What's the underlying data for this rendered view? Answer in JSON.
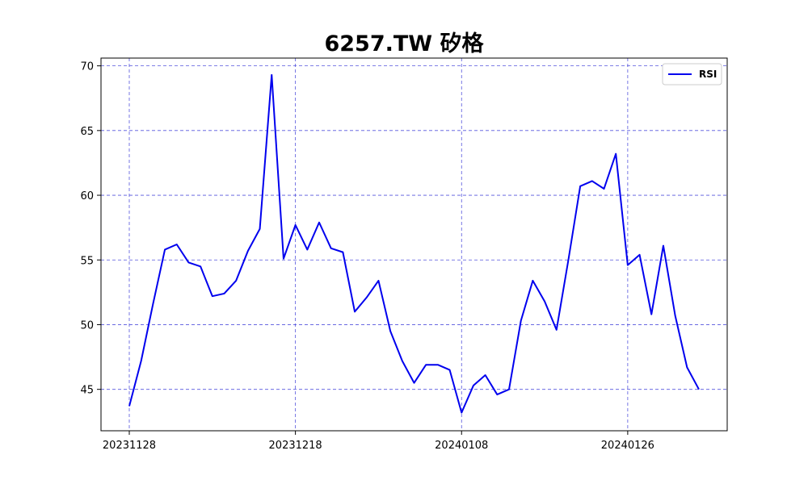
{
  "chart_data": {
    "type": "line",
    "title": "6257.TW 矽格",
    "xlabel": "",
    "ylabel": "",
    "x_tick_labels": [
      "20231128",
      "20231218",
      "20240108",
      "20240126"
    ],
    "x_tick_indices": [
      0,
      14,
      28,
      42
    ],
    "ylim": [
      41.8,
      70.6
    ],
    "yticks": [
      45,
      50,
      55,
      60,
      65,
      70
    ],
    "grid": true,
    "legend_position": "top-right",
    "series": [
      {
        "name": "RSI",
        "color": "#0000ee",
        "values": [
          43.7,
          47.2,
          51.6,
          55.8,
          56.2,
          54.8,
          54.5,
          52.2,
          52.4,
          53.4,
          55.7,
          57.4,
          69.3,
          55.1,
          57.7,
          55.8,
          57.9,
          55.9,
          55.6,
          51.0,
          52.1,
          53.4,
          49.5,
          47.2,
          45.5,
          46.9,
          46.9,
          46.5,
          43.2,
          45.3,
          46.1,
          44.6,
          45.0,
          50.3,
          53.4,
          51.8,
          49.6,
          55.0,
          60.7,
          61.1,
          60.5,
          63.2,
          54.6,
          55.4,
          50.8,
          56.1,
          50.7,
          46.7,
          45.0
        ]
      }
    ]
  }
}
